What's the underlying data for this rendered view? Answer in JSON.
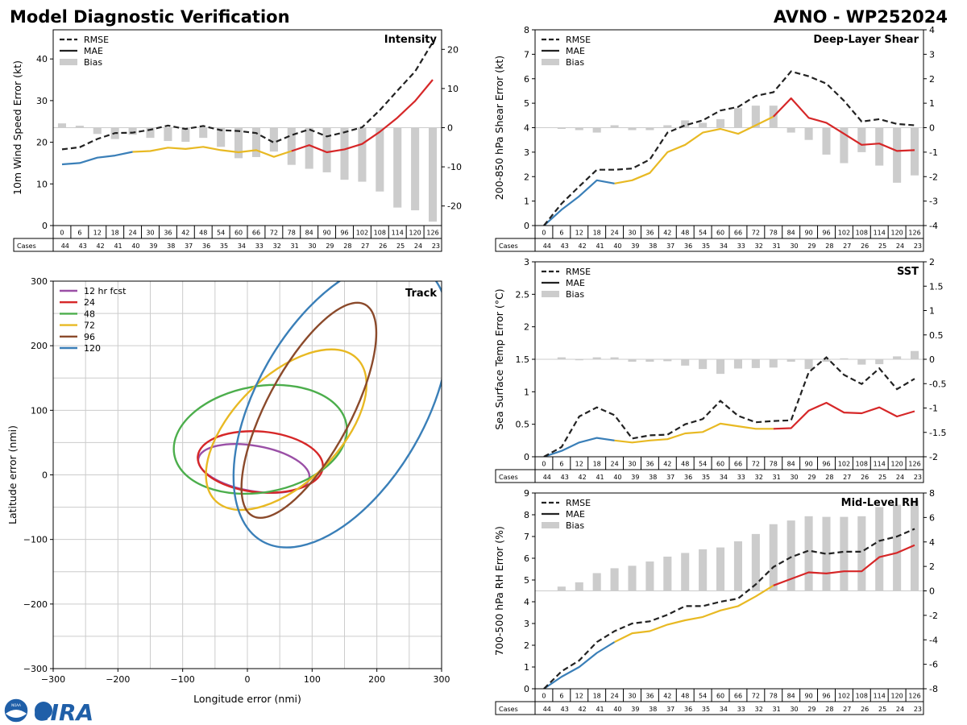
{
  "header": {
    "title": "Model Diagnostic Verification",
    "model_id": "AVNO - WP252024"
  },
  "legend_labels": {
    "rmse": "RMSE",
    "mae": "MAE",
    "bias": "Bias"
  },
  "cases_label": "Cases",
  "colors": {
    "early": "#3a7fb8",
    "mid": "#e8b923",
    "late": "#d62728",
    "rmse": "#222222",
    "bias": "#cccccc",
    "grid": "#cccccc",
    "axis": "#000000"
  },
  "logo": {
    "noaa_text": "NOAA",
    "cira_text": "CIRA"
  },
  "hours": [
    0,
    6,
    12,
    18,
    24,
    30,
    36,
    42,
    48,
    54,
    60,
    66,
    72,
    78,
    84,
    90,
    96,
    102,
    108,
    114,
    120,
    126
  ],
  "cases": [
    44,
    43,
    42,
    41,
    40,
    39,
    38,
    37,
    36,
    35,
    34,
    33,
    32,
    31,
    30,
    29,
    28,
    27,
    26,
    25,
    24,
    23
  ],
  "chart_data": [
    {
      "id": "intensity",
      "type": "line",
      "panel_title": "Intensity",
      "ylabel": "10m Wind Speed Error (kt)",
      "ylim": [
        0,
        47
      ],
      "yticks": [
        0,
        10,
        20,
        30,
        40
      ],
      "y2lim": [
        -25,
        25
      ],
      "y2ticks": [
        -20,
        -10,
        0,
        10,
        20
      ],
      "rmse": [
        18.3,
        18.8,
        20.8,
        22.2,
        22.3,
        23,
        24,
        23.2,
        23.9,
        22.9,
        22.7,
        22.2,
        19.9,
        21.7,
        23.1,
        21.4,
        22.4,
        23.6,
        27.7,
        32.4,
        37,
        44
      ],
      "mae": [
        14.7,
        15,
        16.3,
        16.8,
        17.7,
        17.9,
        18.7,
        18.4,
        18.9,
        18.1,
        17.6,
        18.1,
        16.5,
        17.9,
        19.3,
        17.6,
        18.3,
        19.6,
        22.5,
        25.9,
        29.9,
        35
      ],
      "bias": [
        1.1,
        0.5,
        -1.6,
        -2.9,
        -1.8,
        -2.6,
        -3.4,
        -3.6,
        -2.6,
        -4.9,
        -7.8,
        -7.5,
        -6.1,
        -9.5,
        -10.5,
        -11.4,
        -13.3,
        -13.8,
        -16.3,
        -20.4,
        -21.1,
        -24
      ]
    },
    {
      "id": "shear",
      "type": "line",
      "panel_title": "Deep-Layer Shear",
      "ylabel": "200-850 hPa Shear Error (kt)",
      "ylim": [
        0,
        8
      ],
      "yticks": [
        0,
        1,
        2,
        3,
        4,
        5,
        6,
        7,
        8
      ],
      "y2lim": [
        -4,
        4
      ],
      "y2ticks": [
        -4,
        -3,
        -2,
        -1,
        0,
        1,
        2,
        3,
        4
      ],
      "rmse": [
        0,
        0.9,
        1.6,
        2.28,
        2.28,
        2.33,
        2.7,
        3.8,
        4.1,
        4.3,
        4.7,
        4.85,
        5.3,
        5.45,
        6.3,
        6.1,
        5.8,
        5.1,
        4.25,
        4.35,
        4.15,
        4.1
      ],
      "mae": [
        0,
        0.65,
        1.2,
        1.85,
        1.72,
        1.85,
        2.15,
        3,
        3.3,
        3.8,
        3.95,
        3.75,
        4.1,
        4.45,
        5.2,
        4.4,
        4.2,
        3.75,
        3.3,
        3.35,
        3.05,
        3.08
      ],
      "bias": [
        0,
        -0.05,
        -0.1,
        -0.2,
        0.1,
        -0.1,
        -0.1,
        0.1,
        0.3,
        0.2,
        0.35,
        0.8,
        0.9,
        0.9,
        -0.2,
        -0.5,
        -1.1,
        -1.45,
        -1,
        -1.55,
        -2.25,
        -1.95
      ]
    },
    {
      "id": "sst",
      "type": "line",
      "panel_title": "SST",
      "ylabel": "Sea Surface Temp Error (°C)",
      "ylim": [
        0,
        3
      ],
      "yticks": [
        0,
        0.5,
        1,
        1.5,
        2,
        2.5,
        3
      ],
      "y2lim": [
        -2,
        2
      ],
      "y2ticks": [
        -2,
        -1.5,
        -1,
        -0.5,
        0,
        0.5,
        1,
        1.5,
        2
      ],
      "rmse": [
        0,
        0.15,
        0.62,
        0.76,
        0.64,
        0.28,
        0.33,
        0.34,
        0.5,
        0.58,
        0.86,
        0.63,
        0.53,
        0.55,
        0.56,
        1.3,
        1.53,
        1.26,
        1.12,
        1.36,
        1.04,
        1.2
      ],
      "mae": [
        0,
        0.09,
        0.22,
        0.29,
        0.25,
        0.22,
        0.25,
        0.27,
        0.36,
        0.38,
        0.51,
        0.47,
        0.43,
        0.43,
        0.44,
        0.71,
        0.83,
        0.68,
        0.67,
        0.76,
        0.62,
        0.7
      ],
      "bias": [
        0,
        0.04,
        -0.02,
        0.04,
        0.04,
        -0.05,
        -0.05,
        -0.04,
        -0.13,
        -0.2,
        -0.3,
        -0.19,
        -0.18,
        -0.17,
        -0.05,
        -0.2,
        -0.05,
        0.02,
        -0.11,
        -0.1,
        0.06,
        0.17
      ]
    },
    {
      "id": "rh",
      "type": "line",
      "panel_title": "Mid-Level RH",
      "ylabel": "700-500 hPa RH Error (%)",
      "ylim": [
        0,
        9
      ],
      "yticks": [
        0,
        1,
        2,
        3,
        4,
        5,
        6,
        7,
        8,
        9
      ],
      "y2lim": [
        -8,
        8
      ],
      "y2ticks": [
        -8,
        -6,
        -4,
        -2,
        0,
        2,
        4,
        6,
        8
      ],
      "rmse": [
        0,
        0.8,
        1.3,
        2.15,
        2.65,
        3,
        3.1,
        3.4,
        3.8,
        3.8,
        4,
        4.15,
        4.8,
        5.6,
        6.05,
        6.35,
        6.2,
        6.3,
        6.3,
        6.8,
        7,
        7.35
      ],
      "mae": [
        0,
        0.55,
        1,
        1.65,
        2.15,
        2.55,
        2.65,
        2.95,
        3.15,
        3.3,
        3.6,
        3.8,
        4.25,
        4.75,
        5.05,
        5.35,
        5.3,
        5.4,
        5.4,
        6.05,
        6.25,
        6.6
      ],
      "bias": [
        0,
        0.35,
        0.7,
        1.45,
        1.85,
        2.05,
        2.4,
        2.8,
        3.1,
        3.4,
        3.55,
        4.05,
        4.65,
        5.45,
        5.75,
        6.1,
        6.05,
        6.05,
        6.1,
        6.85,
        7.05,
        7.4
      ]
    },
    {
      "id": "track",
      "type": "scatter",
      "panel_title": "Track",
      "xlabel": "Longitude error (nmi)",
      "ylabel": "Latitude error (nmi)",
      "xlim": [
        -300,
        300
      ],
      "ylim": [
        -300,
        300
      ],
      "xticks": [
        -300,
        -200,
        -100,
        0,
        100,
        200,
        300
      ],
      "yticks": [
        -300,
        -200,
        -100,
        0,
        100,
        200,
        300
      ],
      "ellipses": [
        {
          "label": "12 hr fcst",
          "color": "#9a4fa6",
          "cx": 10,
          "cy": 10,
          "rx": 87,
          "ry": 35,
          "angle": -10
        },
        {
          "label": "24",
          "color": "#d62728",
          "cx": 20,
          "cy": 20,
          "rx": 97,
          "ry": 47,
          "angle": -5
        },
        {
          "label": "48",
          "color": "#4cae4c",
          "cx": 20,
          "cy": 55,
          "rx": 135,
          "ry": 82,
          "angle": 10
        },
        {
          "label": "72",
          "color": "#e8b923",
          "cx": 60,
          "cy": 70,
          "rx": 155,
          "ry": 82,
          "angle": 45
        },
        {
          "label": "96",
          "color": "#8b4a2b",
          "cx": 95,
          "cy": 100,
          "rx": 185,
          "ry": 65,
          "angle": 62
        },
        {
          "label": "120",
          "color": "#3a7fb8",
          "cx": 145,
          "cy": 110,
          "rx": 245,
          "ry": 130,
          "angle": 60
        }
      ]
    }
  ]
}
